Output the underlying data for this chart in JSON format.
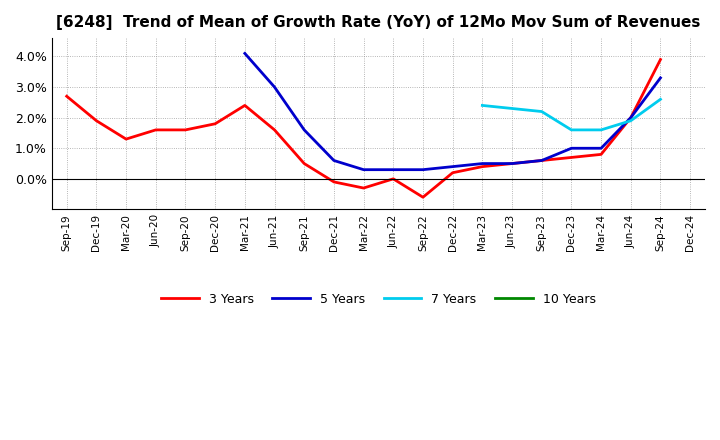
{
  "title": "[6248]  Trend of Mean of Growth Rate (YoY) of 12Mo Mov Sum of Revenues",
  "x_labels": [
    "Sep-19",
    "Dec-19",
    "Mar-20",
    "Jun-20",
    "Sep-20",
    "Dec-20",
    "Mar-21",
    "Jun-21",
    "Sep-21",
    "Dec-21",
    "Mar-22",
    "Jun-22",
    "Sep-22",
    "Dec-22",
    "Mar-23",
    "Jun-23",
    "Sep-23",
    "Dec-23",
    "Mar-24",
    "Jun-24",
    "Sep-24",
    "Dec-24"
  ],
  "series": {
    "3 Years": {
      "color": "#FF0000",
      "linewidth": 2.0,
      "data_x": [
        0,
        1,
        2,
        3,
        4,
        5,
        6,
        7,
        8,
        9,
        10,
        11,
        12,
        13,
        14,
        15,
        16,
        17,
        18,
        19,
        20
      ],
      "data_y": [
        0.027,
        0.019,
        0.013,
        0.016,
        0.016,
        0.018,
        0.024,
        0.016,
        0.005,
        -0.001,
        -0.003,
        0.0,
        -0.006,
        0.002,
        0.004,
        0.005,
        0.006,
        0.007,
        0.008,
        0.02,
        0.039
      ]
    },
    "5 Years": {
      "color": "#0000CC",
      "linewidth": 2.0,
      "data_x": [
        6,
        7,
        8,
        9,
        10,
        11,
        12,
        13,
        14,
        15,
        16,
        17,
        18,
        19,
        20
      ],
      "data_y": [
        0.041,
        0.03,
        0.016,
        0.006,
        0.003,
        0.003,
        0.003,
        0.004,
        0.005,
        0.005,
        0.006,
        0.01,
        0.01,
        0.02,
        0.033
      ]
    },
    "7 Years": {
      "color": "#00CCEE",
      "linewidth": 2.0,
      "data_x": [
        14,
        15,
        16,
        17,
        18,
        19,
        20
      ],
      "data_y": [
        0.024,
        0.023,
        0.022,
        0.016,
        0.016,
        0.019,
        0.026
      ]
    },
    "10 Years": {
      "color": "#008800",
      "linewidth": 2.0,
      "data_x": [],
      "data_y": []
    }
  },
  "ylim": [
    -0.01,
    0.046
  ],
  "yticks": [
    0.0,
    0.01,
    0.02,
    0.03,
    0.04
  ],
  "legend_order": [
    "3 Years",
    "5 Years",
    "7 Years",
    "10 Years"
  ],
  "background_color": "#FFFFFF",
  "grid_color": "#888888",
  "title_fontsize": 11
}
